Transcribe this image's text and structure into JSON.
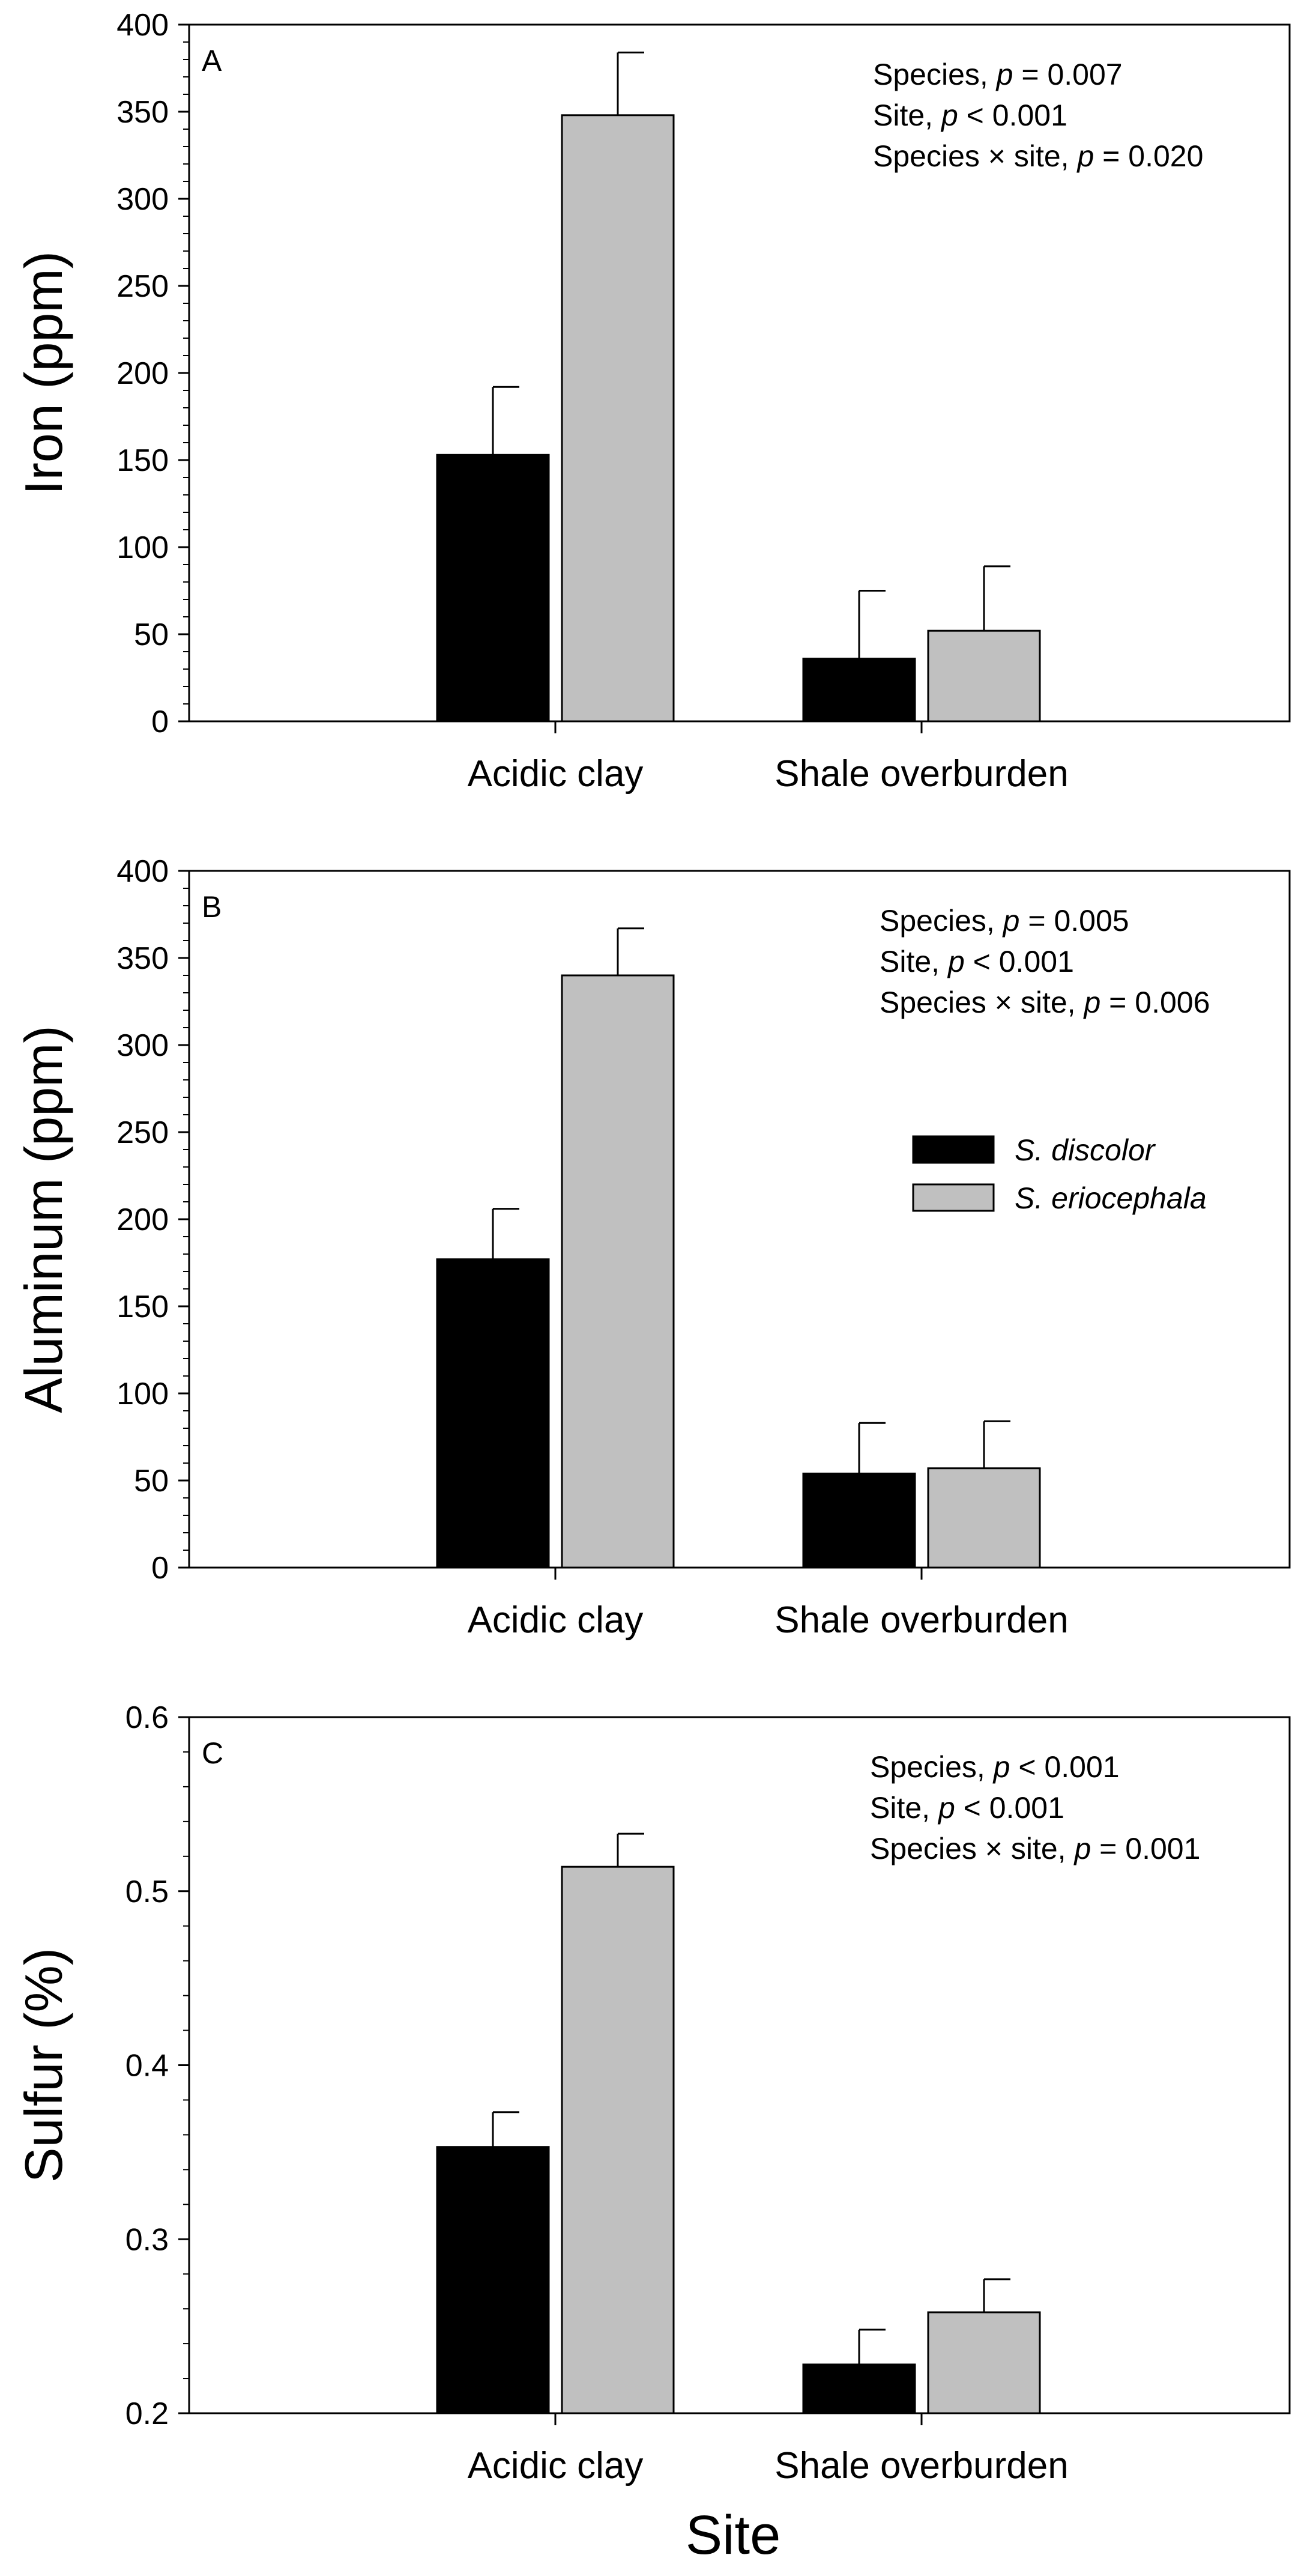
{
  "colors": {
    "series_0": "#000000",
    "series_1": "#c0c0c0"
  },
  "legend": [
    {
      "label": "S. discolor",
      "color": "#000000"
    },
    {
      "label": "S. eriocephala",
      "color": "#c0c0c0"
    }
  ],
  "chart_data": [
    {
      "type": "bar",
      "panel": "A",
      "title": "",
      "xlabel": "",
      "ylabel": "Iron (ppm)",
      "ylim": [
        0,
        400
      ],
      "yticks": [
        "0",
        "50",
        "100",
        "150",
        "200",
        "250",
        "300",
        "350",
        "400"
      ],
      "categories": [
        "Acidic clay",
        "Shale overburden"
      ],
      "series": [
        {
          "name": "S. discolor",
          "values": [
            153,
            36
          ],
          "errors": [
            39,
            39
          ]
        },
        {
          "name": "S. eriocephala",
          "values": [
            348,
            52
          ],
          "errors": [
            36,
            37
          ]
        }
      ],
      "stats": [
        {
          "prefix": "Species, ",
          "p": "p",
          "rest": " = 0.007"
        },
        {
          "prefix": "Site, ",
          "p": "p",
          "rest": " < 0.001"
        },
        {
          "prefix": "Species × site, ",
          "p": "p",
          "rest": " = 0.020"
        }
      ]
    },
    {
      "type": "bar",
      "panel": "B",
      "title": "",
      "xlabel": "",
      "ylabel": "Aluminum (ppm)",
      "ylim": [
        0,
        400
      ],
      "yticks": [
        "0",
        "50",
        "100",
        "150",
        "200",
        "250",
        "300",
        "350",
        "400"
      ],
      "categories": [
        "Acidic clay",
        "Shale overburden"
      ],
      "series": [
        {
          "name": "S. discolor",
          "values": [
            177,
            54
          ],
          "errors": [
            29,
            29
          ]
        },
        {
          "name": "S. eriocephala",
          "values": [
            340,
            57
          ],
          "errors": [
            27,
            27
          ]
        }
      ],
      "stats": [
        {
          "prefix": "Species, ",
          "p": "p",
          "rest": " = 0.005"
        },
        {
          "prefix": "Site, ",
          "p": "p",
          "rest": " < 0.001"
        },
        {
          "prefix": "Species × site, ",
          "p": "p",
          "rest": " = 0.006"
        }
      ]
    },
    {
      "type": "bar",
      "panel": "C",
      "title": "",
      "xlabel": "Site",
      "ylabel": "Sulfur (%)",
      "ylim": [
        0.2,
        0.6
      ],
      "yticks": [
        "0.2",
        "0.3",
        "0.4",
        "0.5",
        "0.6"
      ],
      "categories": [
        "Acidic clay",
        "Shale overburden"
      ],
      "series": [
        {
          "name": "S. discolor",
          "values": [
            0.353,
            0.228
          ],
          "errors": [
            0.02,
            0.02
          ]
        },
        {
          "name": "S. eriocephala",
          "values": [
            0.514,
            0.258
          ],
          "errors": [
            0.019,
            0.019
          ]
        }
      ],
      "stats": [
        {
          "prefix": "Species, ",
          "p": "p",
          "rest": " < 0.001"
        },
        {
          "prefix": "Site, ",
          "p": "p",
          "rest": " < 0.001"
        },
        {
          "prefix": "Species × site, ",
          "p": "p",
          "rest": " = 0.001"
        }
      ]
    }
  ]
}
